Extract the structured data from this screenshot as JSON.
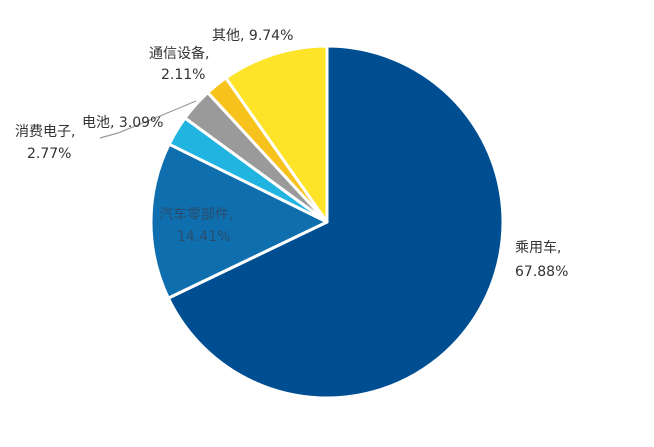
{
  "chart_data": {
    "type": "pie",
    "start_angle": "12 o'clock",
    "direction": "clockwise",
    "slices": [
      {
        "label": "乘用车",
        "value": 67.88,
        "display": "67.88%",
        "color": "#004e92"
      },
      {
        "label": "汽车零部件",
        "value": 14.41,
        "display": "14.41%",
        "color": "#0f6fae"
      },
      {
        "label": "消费电子",
        "value": 2.77,
        "display": "2.77%",
        "color": "#22b4e0"
      },
      {
        "label": "电池",
        "value": 3.09,
        "display": "3.09%",
        "color": "#9a9a9a"
      },
      {
        "label": "通信设备",
        "value": 2.11,
        "display": "2.11%",
        "color": "#f8c21c"
      },
      {
        "label": "其他",
        "value": 9.74,
        "display": "9.74%",
        "color": "#fde428"
      }
    ]
  }
}
